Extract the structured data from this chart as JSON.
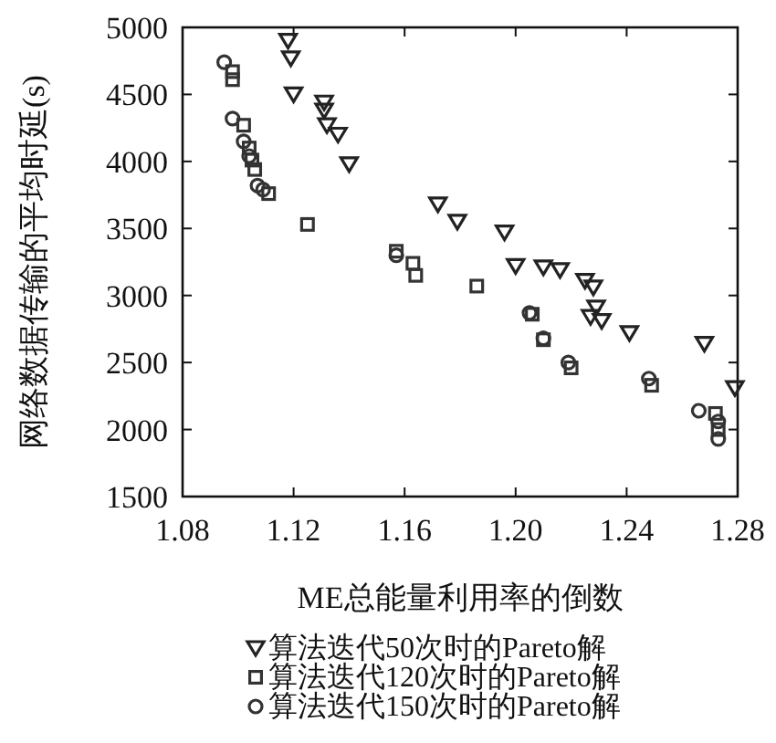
{
  "chart_data": {
    "type": "scatter",
    "xlabel": "ME总能量利用率的倒数",
    "ylabel": "网络数据传输的平均时延(s)",
    "xlim": [
      1.08,
      1.28
    ],
    "xticks": [
      {
        "value": 1.08,
        "label": "1.08"
      },
      {
        "value": 1.12,
        "label": "1.12"
      },
      {
        "value": 1.16,
        "label": "1.16"
      },
      {
        "value": 1.2,
        "label": "1.20"
      },
      {
        "value": 1.24,
        "label": "1.24"
      },
      {
        "value": 1.28,
        "label": "1.28"
      }
    ],
    "ylim": [
      1500,
      5000
    ],
    "yticks": [
      1500,
      2000,
      2500,
      3000,
      3500,
      4000,
      4500,
      5000
    ],
    "grid": false,
    "legend": "bottom",
    "series": [
      {
        "name": "算法迭代50次时的Pareto解",
        "color": "#222222",
        "marker": "triangle",
        "x": [
          1.118,
          1.119,
          1.12,
          1.131,
          1.131,
          1.132,
          1.136,
          1.14,
          1.172,
          1.179,
          1.196,
          1.2,
          1.21,
          1.216,
          1.225,
          1.228,
          1.229,
          1.227,
          1.231,
          1.241,
          1.268,
          1.279
        ],
        "values": [
          4900,
          4770,
          4500,
          4440,
          4380,
          4270,
          4200,
          3980,
          3680,
          3550,
          3470,
          3220,
          3210,
          3190,
          3110,
          3060,
          2910,
          2840,
          2810,
          2720,
          2640,
          2310
        ]
      },
      {
        "name": "算法迭代120次时的Pareto解",
        "color": "#333333",
        "marker": "square",
        "x": [
          1.098,
          1.098,
          1.102,
          1.104,
          1.105,
          1.106,
          1.111,
          1.125,
          1.157,
          1.163,
          1.164,
          1.186,
          1.206,
          1.21,
          1.22,
          1.249,
          1.272,
          1.273
        ],
        "values": [
          4670,
          4610,
          4270,
          4100,
          4010,
          3940,
          3760,
          3530,
          3330,
          3240,
          3150,
          3070,
          2860,
          2670,
          2460,
          2330,
          2120,
          2000
        ]
      },
      {
        "name": "算法迭代150次时的Pareto解",
        "color": "#333333",
        "marker": "circle",
        "x": [
          1.095,
          1.098,
          1.102,
          1.104,
          1.107,
          1.109,
          1.157,
          1.205,
          1.21,
          1.219,
          1.248,
          1.266,
          1.273,
          1.273
        ],
        "values": [
          4740,
          4320,
          4150,
          4040,
          3820,
          3790,
          3300,
          2870,
          2680,
          2500,
          2380,
          2140,
          2060,
          1930
        ]
      }
    ]
  }
}
